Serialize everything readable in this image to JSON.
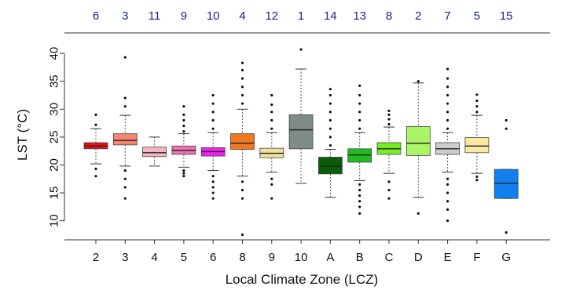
{
  "chart_data": {
    "type": "box",
    "title": "",
    "xlabel": "Local Climate Zone (LCZ)",
    "ylabel": "LST (°C)",
    "ylim": [
      7,
      41
    ],
    "yticks": [
      10,
      15,
      20,
      25,
      30,
      35,
      40
    ],
    "grid": false,
    "categories": [
      "2",
      "3",
      "4",
      "5",
      "6",
      "8",
      "9",
      "10",
      "A",
      "B",
      "C",
      "D",
      "E",
      "F",
      "G"
    ],
    "top_labels": [
      "6",
      "3",
      "11",
      "9",
      "10",
      "4",
      "12",
      "1",
      "14",
      "13",
      "8",
      "2",
      "7",
      "5",
      "15"
    ],
    "colors": [
      "#ee1111",
      "#f58570",
      "#f5b5c2",
      "#f070b0",
      "#ee22ee",
      "#f07820",
      "#f0e0a0",
      "#7d8c84",
      "#0a5e0a",
      "#22bb22",
      "#77ee22",
      "#aaf566",
      "#cccccc",
      "#f8e8a0",
      "#1080f0"
    ],
    "boxes": [
      {
        "min": 20.2,
        "q1": 22.9,
        "median": 23.4,
        "q3": 24.0,
        "max": 26.5,
        "outliers": [
          18.0,
          19.3,
          27.2,
          29.0
        ]
      },
      {
        "min": 19.8,
        "q1": 23.6,
        "median": 24.4,
        "q3": 25.6,
        "max": 28.9,
        "outliers": [
          14.0,
          16.0,
          17.5,
          19.0,
          30.5,
          32.0,
          39.3
        ]
      },
      {
        "min": 19.8,
        "q1": 21.5,
        "median": 22.2,
        "q3": 23.2,
        "max": 25.0,
        "outliers": []
      },
      {
        "min": 19.6,
        "q1": 21.9,
        "median": 22.6,
        "q3": 23.4,
        "max": 25.6,
        "outliers": [
          18.0,
          18.5,
          19.0,
          26.0,
          27.0,
          28.0,
          29.0,
          30.5
        ]
      },
      {
        "min": 19.0,
        "q1": 21.6,
        "median": 22.4,
        "q3": 23.1,
        "max": 25.8,
        "outliers": [
          14.0,
          15.0,
          16.0,
          17.0,
          18.0,
          26.5,
          28.0,
          29.5,
          31.0,
          32.5
        ]
      },
      {
        "min": 18.0,
        "q1": 22.8,
        "median": 23.9,
        "q3": 25.6,
        "max": 30.0,
        "outliers": [
          14.0,
          15.5,
          17.0,
          31.0,
          32.5,
          34.0,
          35.5,
          37.0,
          38.3,
          7.5
        ]
      },
      {
        "min": 18.7,
        "q1": 21.3,
        "median": 22.1,
        "q3": 23.0,
        "max": 25.8,
        "outliers": [
          14.0,
          16.5,
          17.5,
          26.5,
          28.0,
          29.5,
          30.8,
          32.5
        ]
      },
      {
        "min": 16.7,
        "q1": 22.9,
        "median": 26.3,
        "q3": 29.0,
        "max": 37.2,
        "outliers": [
          40.7
        ]
      },
      {
        "min": 14.2,
        "q1": 18.4,
        "median": 19.8,
        "q3": 21.4,
        "max": 22.8,
        "outliers": [
          23.5,
          25.0,
          26.5,
          28.0,
          29.5,
          31.0,
          32.5,
          33.6
        ]
      },
      {
        "min": 17.2,
        "q1": 20.5,
        "median": 21.8,
        "q3": 22.9,
        "max": 25.8,
        "outliers": [
          11.3,
          12.5,
          13.5,
          14.5,
          15.5,
          16.5,
          26.5,
          28.0,
          29.5,
          31.0,
          32.5,
          34.2
        ]
      },
      {
        "min": 18.5,
        "q1": 21.9,
        "median": 22.9,
        "q3": 24.0,
        "max": 26.8,
        "outliers": [
          14.0,
          15.5,
          17.0,
          27.3,
          28.2,
          29.0,
          29.7
        ]
      },
      {
        "min": 14.2,
        "q1": 21.7,
        "median": 23.9,
        "q3": 26.9,
        "max": 34.7,
        "outliers": [
          11.3,
          35.0
        ]
      },
      {
        "min": 18.7,
        "q1": 21.9,
        "median": 22.9,
        "q3": 24.0,
        "max": 25.8,
        "outliers": [
          10.0,
          12.0,
          13.5,
          15.0,
          16.5,
          17.5,
          26.5,
          28.0,
          29.5,
          31.0,
          32.5,
          34.0,
          35.5,
          37.2
        ]
      },
      {
        "min": 18.5,
        "q1": 22.2,
        "median": 23.4,
        "q3": 24.9,
        "max": 28.9,
        "outliers": [
          17.3,
          17.9,
          29.5,
          30.5,
          31.5,
          32.6
        ]
      },
      {
        "min": 14.0,
        "q1": 14.0,
        "median": 16.7,
        "q3": 19.2,
        "max": 19.2,
        "outliers": [
          7.9,
          26.5,
          28.0
        ]
      }
    ]
  }
}
